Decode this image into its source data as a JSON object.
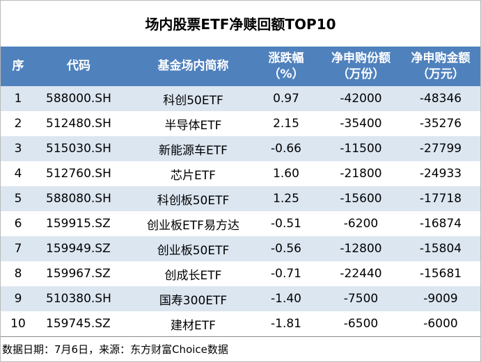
{
  "title": "场内股票ETF净赎回额TOP10",
  "headers": [
    {
      "line1": "序",
      "line2": ""
    },
    {
      "line1": "代码",
      "line2": ""
    },
    {
      "line1": "基金场内简称",
      "line2": ""
    },
    {
      "line1": "涨跌幅",
      "line2": "（%）"
    },
    {
      "line1": "净申购份额",
      "line2": "（万份）"
    },
    {
      "line1": "净申购金额",
      "line2": "（万元）"
    }
  ],
  "rows": [
    {
      "seq": "1",
      "code": "588000.SH",
      "name": "科创50ETF",
      "change": "0.97",
      "shares": "-42000",
      "amount": "-48346"
    },
    {
      "seq": "2",
      "code": "512480.SH",
      "name": "半导体ETF",
      "change": "2.15",
      "shares": "-35400",
      "amount": "-35276"
    },
    {
      "seq": "3",
      "code": "515030.SH",
      "name": "新能源车ETF",
      "change": "-0.66",
      "shares": "-11500",
      "amount": "-27799"
    },
    {
      "seq": "4",
      "code": "512760.SH",
      "name": "芯片ETF",
      "change": "1.60",
      "shares": "-21800",
      "amount": "-24933"
    },
    {
      "seq": "5",
      "code": "588080.SH",
      "name": "科创板50ETF",
      "change": "1.25",
      "shares": "-15600",
      "amount": "-17718"
    },
    {
      "seq": "6",
      "code": "159915.SZ",
      "name": "创业板ETF易方达",
      "change": "-0.51",
      "shares": "-6200",
      "amount": "-16874"
    },
    {
      "seq": "7",
      "code": "159949.SZ",
      "name": "创业板50ETF",
      "change": "-0.56",
      "shares": "-12800",
      "amount": "-15804"
    },
    {
      "seq": "8",
      "code": "159967.SZ",
      "name": "创成长ETF",
      "change": "-0.71",
      "shares": "-22440",
      "amount": "-15681"
    },
    {
      "seq": "9",
      "code": "510380.SH",
      "name": "国寿300ETF",
      "change": "-1.40",
      "shares": "-7500",
      "amount": "-9009"
    },
    {
      "seq": "10",
      "code": "159745.SZ",
      "name": "建材ETF",
      "change": "-1.81",
      "shares": "-6500",
      "amount": "-6000"
    }
  ],
  "footer": "数据日期：7月6日，来源：东方财富Choice数据",
  "colors": {
    "header_bg": "#4f81bd",
    "row_alt_bg": "#dce6f1",
    "header_text": "#ffffff"
  }
}
